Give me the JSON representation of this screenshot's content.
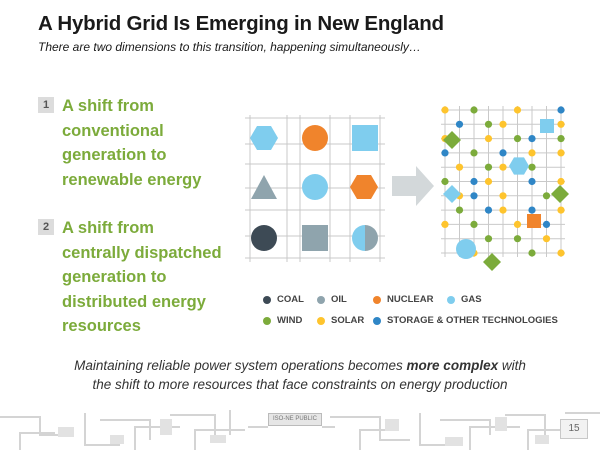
{
  "title": "A Hybrid Grid Is Emerging in New England",
  "subtitle": "There are two dimensions to this transition, happening simultaneously…",
  "points": [
    {
      "number": "1",
      "lines": [
        "A shift from",
        "conventional",
        "generation to",
        "renewable energy"
      ]
    },
    {
      "number": "2",
      "lines": [
        "A shift from",
        "centrally dispatched",
        "generation to",
        "distributed energy",
        "resources"
      ]
    }
  ],
  "legend": [
    {
      "label": "COAL",
      "color": "#3d4a55"
    },
    {
      "label": "OIL",
      "color": "#8fa4ad"
    },
    {
      "label": "NUCLEAR",
      "color": "#f0842c"
    },
    {
      "label": "GAS",
      "color": "#7fcdee"
    },
    {
      "label": "WIND",
      "color": "#7cab3b"
    },
    {
      "label": "SOLAR",
      "color": "#fec42d"
    },
    {
      "label": "STORAGE & OTHER TECHNOLOGIES",
      "color": "#2f86c6"
    }
  ],
  "footer": {
    "line1_pre": "Maintaining reliable power system operations becomes ",
    "line1_bold": "more complex",
    "line1_post": " with",
    "line2": "the shift to more resources that face constraints on energy production"
  },
  "badge": "ISO-NE PUBLIC",
  "page_number": "15",
  "colors": {
    "accent_green": "#7cab3b",
    "grid_line": "#c9c9c9",
    "arrow": "#d3d8da"
  }
}
